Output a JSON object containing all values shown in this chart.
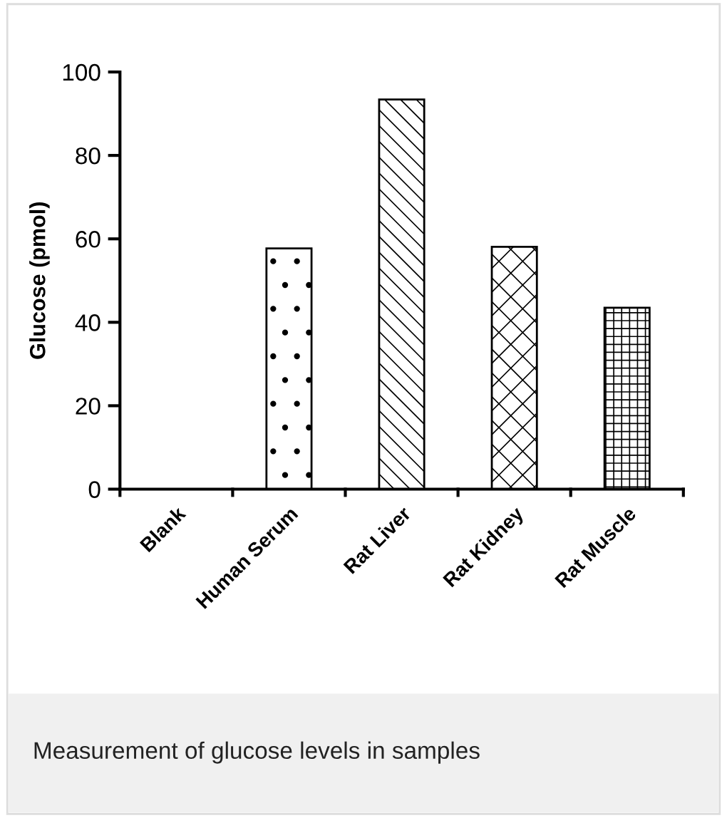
{
  "chart_data": {
    "type": "bar",
    "ylabel": "Glucose (pmol)",
    "categories": [
      "Blank",
      "Human Serum",
      "Rat Liver",
      "Rat Kidney",
      "Rat Muscle"
    ],
    "values": [
      0,
      57.7,
      93.4,
      58.1,
      43.5
    ],
    "colors": [
      "#000000",
      "#000000",
      "#000000",
      "#000000",
      "#000000"
    ],
    "ylim": [
      0,
      100
    ],
    "yticks": [
      0,
      20,
      40,
      60,
      80,
      100
    ],
    "grid": false,
    "annotations": [
      "Measurement of glucose levels in samples"
    ]
  }
}
